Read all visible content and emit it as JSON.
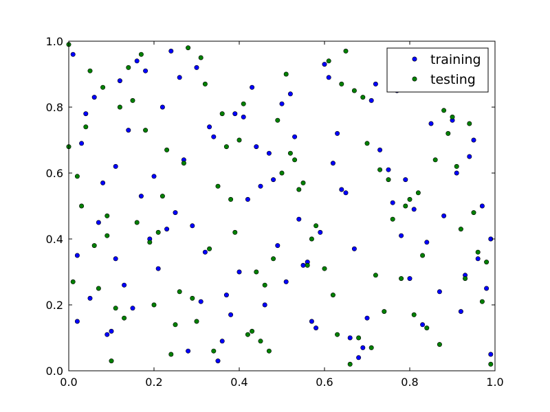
{
  "chart_data": {
    "type": "scatter",
    "title": "",
    "xlabel": "",
    "ylabel": "",
    "xlim": [
      0,
      1
    ],
    "ylim": [
      0,
      1
    ],
    "xticks": [
      "0.0",
      "0.2",
      "0.4",
      "0.6",
      "0.8",
      "1.0"
    ],
    "yticks": [
      "0.0",
      "0.2",
      "0.4",
      "0.6",
      "0.8",
      "1.0"
    ],
    "grid": false,
    "legend_position": "top-right",
    "series": [
      {
        "name": "training",
        "color": "#0000ff",
        "marker": "circle",
        "point_count_estimate": 500,
        "x": [
          0.01,
          0.06,
          0.11,
          0.18,
          0.25,
          0.33,
          0.4,
          0.47,
          0.58,
          0.64,
          0.72,
          0.78,
          0.87,
          0.95,
          0.99,
          0.02,
          0.08,
          0.15,
          0.22,
          0.29,
          0.36,
          0.44,
          0.51,
          0.6,
          0.67,
          0.75,
          0.83,
          0.9,
          0.97,
          0.05,
          0.12,
          0.19,
          0.27,
          0.35,
          0.42,
          0.5,
          0.56,
          0.63,
          0.7,
          0.79,
          0.86,
          0.93,
          0.03,
          0.1,
          0.17,
          0.24,
          0.32,
          0.39,
          0.46,
          0.54,
          0.62,
          0.69,
          0.77,
          0.84,
          0.91,
          0.98,
          0.07,
          0.14,
          0.21,
          0.3,
          0.38,
          0.45,
          0.52,
          0.59,
          0.66,
          0.73,
          0.81,
          0.89,
          0.96,
          0.04,
          0.13,
          0.2,
          0.28,
          0.34,
          0.43,
          0.49,
          0.57,
          0.65,
          0.71,
          0.8,
          0.88,
          0.94,
          0.09,
          0.16,
          0.23,
          0.31,
          0.41,
          0.48,
          0.55,
          0.61,
          0.68,
          0.76,
          0.85,
          0.92,
          0.99,
          0.02,
          0.11,
          0.26,
          0.37,
          0.53
        ],
        "y": [
          0.96,
          0.83,
          0.62,
          0.91,
          0.48,
          0.74,
          0.3,
          0.66,
          0.13,
          0.55,
          0.87,
          0.41,
          0.24,
          0.7,
          0.05,
          0.35,
          0.57,
          0.19,
          0.8,
          0.44,
          0.09,
          0.68,
          0.27,
          0.93,
          0.37,
          0.61,
          0.14,
          0.76,
          0.5,
          0.22,
          0.88,
          0.4,
          0.64,
          0.03,
          0.52,
          0.81,
          0.33,
          0.72,
          0.16,
          0.58,
          0.9,
          0.29,
          0.69,
          0.12,
          0.53,
          0.97,
          0.36,
          0.78,
          0.2,
          0.46,
          0.63,
          0.07,
          0.85,
          0.39,
          0.6,
          0.25,
          0.45,
          0.73,
          0.31,
          0.92,
          0.17,
          0.56,
          0.84,
          0.42,
          0.1,
          0.67,
          0.49,
          0.95,
          0.34,
          0.78,
          0.26,
          0.59,
          0.06,
          0.71,
          0.86,
          0.38,
          0.15,
          0.54,
          0.82,
          0.28,
          0.47,
          0.65,
          0.11,
          0.94,
          0.43,
          0.21,
          0.77,
          0.58,
          0.32,
          0.89,
          0.04,
          0.51,
          0.75,
          0.18,
          0.4,
          0.15,
          0.34,
          0.89,
          0.23,
          0.71
        ]
      },
      {
        "name": "testing",
        "color": "#008000",
        "marker": "circle",
        "point_count_estimate": 500,
        "x": [
          0.0,
          0.04,
          0.09,
          0.14,
          0.2,
          0.27,
          0.34,
          0.41,
          0.48,
          0.55,
          0.63,
          0.7,
          0.78,
          0.85,
          0.92,
          0.99,
          0.02,
          0.07,
          0.12,
          0.19,
          0.25,
          0.31,
          0.38,
          0.45,
          0.52,
          0.6,
          0.67,
          0.74,
          0.82,
          0.89,
          0.96,
          0.05,
          0.1,
          0.16,
          0.23,
          0.29,
          0.36,
          0.43,
          0.5,
          0.57,
          0.65,
          0.72,
          0.79,
          0.87,
          0.94,
          0.01,
          0.08,
          0.13,
          0.21,
          0.28,
          0.33,
          0.4,
          0.47,
          0.54,
          0.62,
          0.69,
          0.76,
          0.84,
          0.91,
          0.98,
          0.03,
          0.11,
          0.18,
          0.24,
          0.32,
          0.39,
          0.46,
          0.53,
          0.61,
          0.68,
          0.75,
          0.83,
          0.9,
          0.97,
          0.06,
          0.15,
          0.22,
          0.3,
          0.37,
          0.44,
          0.51,
          0.58,
          0.66,
          0.73,
          0.81,
          0.88,
          0.95,
          0.0,
          0.09,
          0.17,
          0.26,
          0.35,
          0.42,
          0.49,
          0.56,
          0.64,
          0.71,
          0.8,
          0.86,
          0.93
        ],
        "y": [
          0.99,
          0.74,
          0.47,
          0.92,
          0.2,
          0.63,
          0.06,
          0.81,
          0.34,
          0.57,
          0.11,
          0.69,
          0.28,
          0.88,
          0.43,
          0.02,
          0.59,
          0.25,
          0.8,
          0.39,
          0.14,
          0.95,
          0.52,
          0.09,
          0.66,
          0.31,
          0.85,
          0.18,
          0.54,
          0.72,
          0.36,
          0.91,
          0.03,
          0.45,
          0.67,
          0.22,
          0.78,
          0.12,
          0.6,
          0.4,
          0.97,
          0.29,
          0.5,
          0.08,
          0.75,
          0.27,
          0.86,
          0.16,
          0.42,
          0.98,
          0.37,
          0.7,
          0.06,
          0.55,
          0.23,
          0.83,
          0.46,
          0.13,
          0.62,
          0.33,
          0.5,
          0.19,
          0.73,
          0.05,
          0.87,
          0.42,
          0.26,
          0.64,
          0.94,
          0.1,
          0.58,
          0.35,
          0.77,
          0.21,
          0.38,
          0.82,
          0.53,
          0.15,
          0.68,
          0.3,
          0.9,
          0.44,
          0.02,
          0.61,
          0.17,
          0.79,
          0.48,
          0.68,
          0.41,
          0.96,
          0.24,
          0.56,
          0.11,
          0.76,
          0.32,
          0.87,
          0.07,
          0.52,
          0.64,
          0.28
        ]
      }
    ]
  }
}
